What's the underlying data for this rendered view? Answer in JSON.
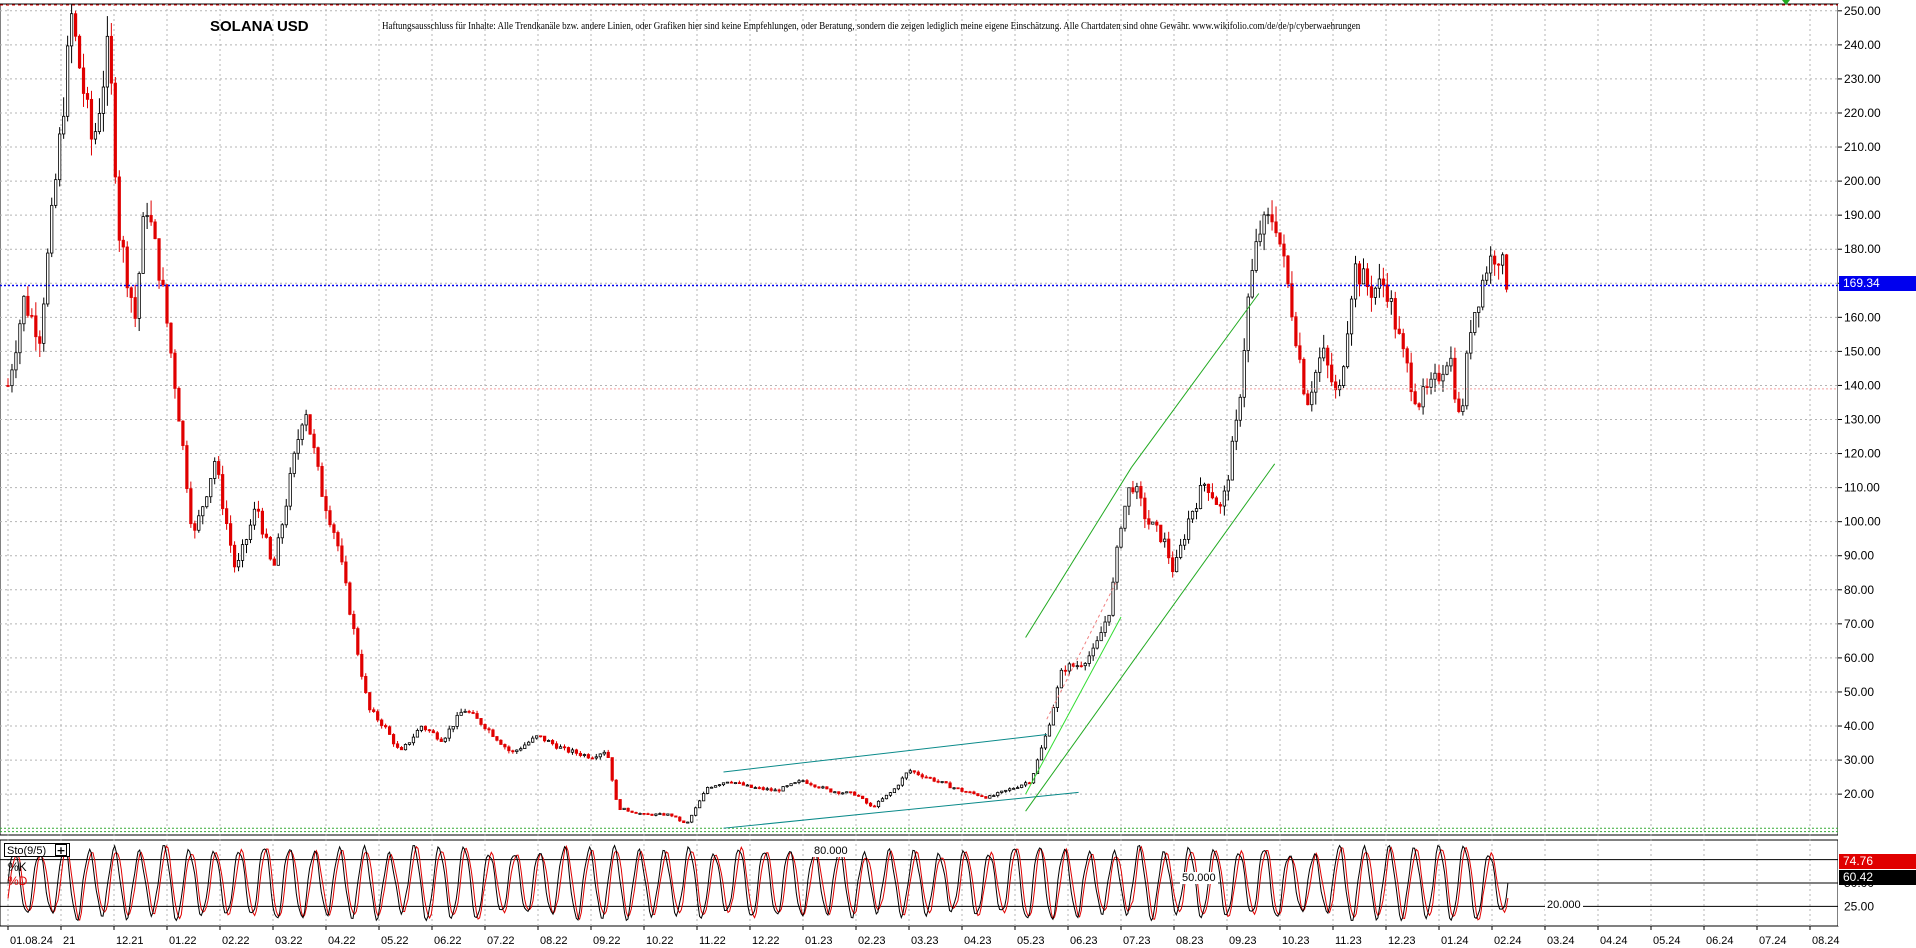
{
  "title": "SOLANA USD",
  "disclaimer": "Haftungsausschluss für Inhalte: Alle Trendkanäle bzw. andere Linien, oder Grafiken hier sind keine Empfehlungen, oder Beratung, sondern die zeigen lediglich meine eigene Einschätzung. Alle Chartdaten sind ohne Gewähr.  www.wikifolio.com/de/de/p/cyberwaehrungen",
  "current_price_label": "169.34",
  "oscillator": {
    "name_label": "Sto(9/5)",
    "plus_label": "+",
    "k_label": "%K",
    "d_label": "%D",
    "k_value_label": "74.76",
    "d_value_label": "60.42",
    "level_labels": [
      "80.000",
      "50.000",
      "20.000"
    ]
  },
  "colors": {
    "bull": "#000000",
    "bear": "#e00000",
    "grid": "#b4b4b4",
    "price_line": "#0000ee",
    "channel_green": "#22aa22",
    "channel_teal": "#0a8a8a",
    "k_line": "#000000",
    "d_line": "#e00000"
  },
  "chart_data": [
    {
      "type": "candlestick",
      "title": "SOLANA USD",
      "x_ticks": [
        "01.08.24",
        "21",
        "12.21",
        "01.22",
        "02.22",
        "03.22",
        "04.22",
        "05.22",
        "06.22",
        "07.22",
        "08.22",
        "09.22",
        "10.22",
        "11.22",
        "12.22",
        "01.23",
        "02.23",
        "03.23",
        "04.23",
        "05.23",
        "06.23",
        "07.23",
        "08.23",
        "09.23",
        "10.23",
        "11.23",
        "12.23",
        "01.24",
        "02.24",
        "03.24",
        "04.24",
        "05.24",
        "06.24",
        "07.24",
        "08.24"
      ],
      "y_ticks": [
        20,
        30,
        40,
        50,
        60,
        70,
        80,
        90,
        100,
        110,
        120,
        130,
        140,
        150,
        160,
        170,
        180,
        190,
        200,
        210,
        220,
        230,
        240,
        250
      ],
      "y_tick_labels": [
        "20.00",
        "30.00",
        "40.00",
        "50.00",
        "60.00",
        "70.00",
        "80.00",
        "90.00",
        "100.00",
        "110.00",
        "120.00",
        "130.00",
        "140.00",
        "150.00",
        "160.00",
        "170.00",
        "180.00",
        "190.00",
        "200.00",
        "210.00",
        "220.00",
        "230.00",
        "240.00",
        "250.00"
      ],
      "ylim": [
        8,
        252
      ],
      "y_axis_side": "right",
      "grid": true,
      "last_price": 169.34,
      "close_path": [
        {
          "m": 0.0,
          "v": 140
        },
        {
          "m": 0.3,
          "v": 165
        },
        {
          "m": 0.6,
          "v": 155
        },
        {
          "m": 1.0,
          "v": 215
        },
        {
          "m": 1.2,
          "v": 248
        },
        {
          "m": 1.6,
          "v": 210
        },
        {
          "m": 1.9,
          "v": 240
        },
        {
          "m": 2.1,
          "v": 185
        },
        {
          "m": 2.4,
          "v": 160
        },
        {
          "m": 2.6,
          "v": 195
        },
        {
          "m": 2.9,
          "v": 170
        },
        {
          "m": 3.2,
          "v": 135
        },
        {
          "m": 3.5,
          "v": 95
        },
        {
          "m": 3.9,
          "v": 118
        },
        {
          "m": 4.3,
          "v": 85
        },
        {
          "m": 4.7,
          "v": 105
        },
        {
          "m": 5.0,
          "v": 85
        },
        {
          "m": 5.3,
          "v": 110
        },
        {
          "m": 5.6,
          "v": 135
        },
        {
          "m": 5.9,
          "v": 110
        },
        {
          "m": 6.2,
          "v": 95
        },
        {
          "m": 6.5,
          "v": 70
        },
        {
          "m": 6.8,
          "v": 45
        },
        {
          "m": 7.1,
          "v": 40
        },
        {
          "m": 7.4,
          "v": 32
        },
        {
          "m": 7.8,
          "v": 40
        },
        {
          "m": 8.2,
          "v": 36
        },
        {
          "m": 8.6,
          "v": 45
        },
        {
          "m": 9.0,
          "v": 40
        },
        {
          "m": 9.5,
          "v": 32
        },
        {
          "m": 10.0,
          "v": 37
        },
        {
          "m": 10.5,
          "v": 33
        },
        {
          "m": 11.0,
          "v": 31
        },
        {
          "m": 11.3,
          "v": 33
        },
        {
          "m": 11.5,
          "v": 16
        },
        {
          "m": 12.0,
          "v": 14
        },
        {
          "m": 12.5,
          "v": 14
        },
        {
          "m": 12.8,
          "v": 11
        },
        {
          "m": 13.2,
          "v": 22
        },
        {
          "m": 13.6,
          "v": 24
        },
        {
          "m": 14.0,
          "v": 22
        },
        {
          "m": 14.5,
          "v": 21
        },
        {
          "m": 15.0,
          "v": 24
        },
        {
          "m": 15.5,
          "v": 21
        },
        {
          "m": 16.0,
          "v": 20
        },
        {
          "m": 16.3,
          "v": 16
        },
        {
          "m": 16.7,
          "v": 21
        },
        {
          "m": 17.0,
          "v": 27
        },
        {
          "m": 17.5,
          "v": 24
        },
        {
          "m": 18.0,
          "v": 21
        },
        {
          "m": 18.5,
          "v": 19
        },
        {
          "m": 19.0,
          "v": 22
        },
        {
          "m": 19.3,
          "v": 24
        },
        {
          "m": 19.6,
          "v": 38
        },
        {
          "m": 19.9,
          "v": 57
        },
        {
          "m": 20.2,
          "v": 58
        },
        {
          "m": 20.5,
          "v": 62
        },
        {
          "m": 20.8,
          "v": 75
        },
        {
          "m": 21.0,
          "v": 100
        },
        {
          "m": 21.2,
          "v": 112
        },
        {
          "m": 21.5,
          "v": 100
        },
        {
          "m": 21.8,
          "v": 95
        },
        {
          "m": 22.0,
          "v": 85
        },
        {
          "m": 22.3,
          "v": 102
        },
        {
          "m": 22.6,
          "v": 112
        },
        {
          "m": 22.9,
          "v": 103
        },
        {
          "m": 23.2,
          "v": 130
        },
        {
          "m": 23.4,
          "v": 165
        },
        {
          "m": 23.6,
          "v": 185
        },
        {
          "m": 23.9,
          "v": 190
        },
        {
          "m": 24.2,
          "v": 165
        },
        {
          "m": 24.5,
          "v": 135
        },
        {
          "m": 24.8,
          "v": 150
        },
        {
          "m": 25.1,
          "v": 135
        },
        {
          "m": 25.4,
          "v": 175
        },
        {
          "m": 25.7,
          "v": 168
        },
        {
          "m": 26.0,
          "v": 170
        },
        {
          "m": 26.3,
          "v": 150
        },
        {
          "m": 26.6,
          "v": 135
        },
        {
          "m": 26.9,
          "v": 140
        },
        {
          "m": 27.2,
          "v": 150
        },
        {
          "m": 27.4,
          "v": 128
        },
        {
          "m": 27.6,
          "v": 158
        },
        {
          "m": 27.9,
          "v": 175
        },
        {
          "m": 28.1,
          "v": 180
        },
        {
          "m": 28.3,
          "v": 169.34
        }
      ]
    },
    {
      "type": "line",
      "title": "Sto(9/5)",
      "series": [
        {
          "name": "%K",
          "last": 74.76
        },
        {
          "name": "%D",
          "last": 60.42
        }
      ],
      "levels": [
        80,
        50,
        20
      ],
      "ylim": [
        0,
        100
      ],
      "oscillation_cycles": 60
    }
  ]
}
